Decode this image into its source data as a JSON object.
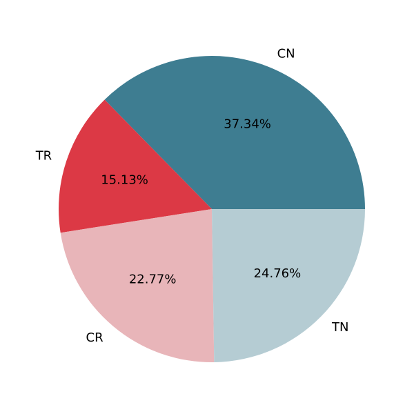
{
  "chart_data": {
    "type": "pie",
    "title": "",
    "categories": [
      "CN",
      "TR",
      "CR",
      "TN"
    ],
    "values": [
      37.34,
      15.13,
      22.77,
      24.76
    ],
    "value_labels": [
      "37.34%",
      "15.13%",
      "22.77%",
      "24.76%"
    ],
    "colors": [
      "#3e7d91",
      "#dc3945",
      "#e8b5b9",
      "#b5ccd3"
    ],
    "start_angle_deg": 0,
    "direction": "counterclockwise"
  }
}
